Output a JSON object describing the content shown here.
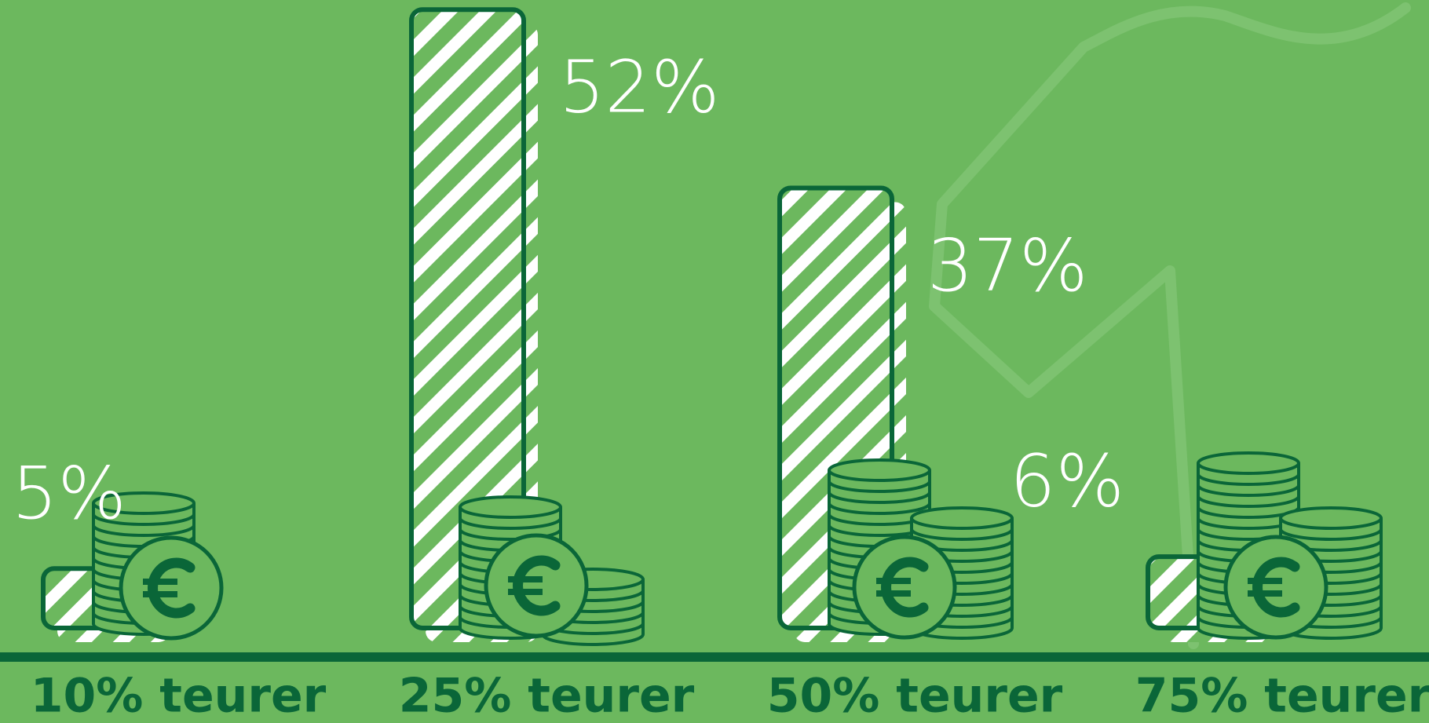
{
  "chart_data": {
    "type": "bar",
    "categories": [
      "10% teurer",
      "25% teurer",
      "50% teurer",
      "75% teurer"
    ],
    "values": [
      5,
      52,
      37,
      6
    ],
    "value_labels": [
      "5%",
      "52%",
      "37%",
      "6%"
    ],
    "color": "#0a6638"
  }
}
